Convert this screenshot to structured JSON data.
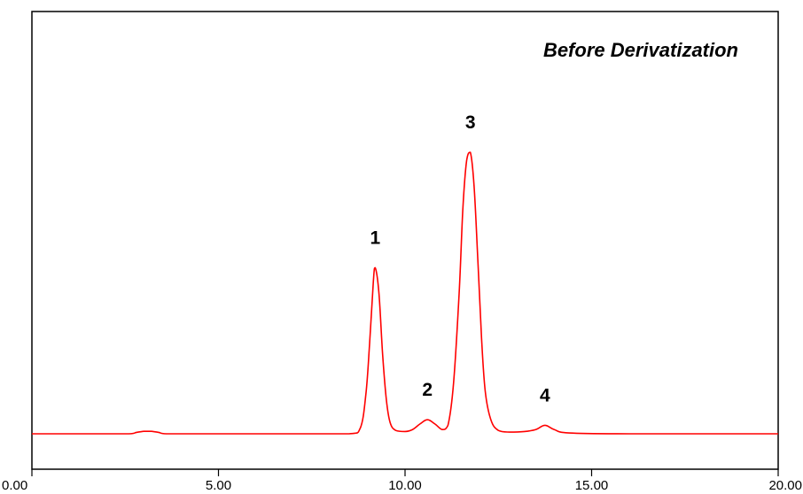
{
  "chart_data": {
    "type": "line",
    "title": "Before Derivatization",
    "xlabel": "",
    "ylabel": "",
    "xlim": [
      0,
      20
    ],
    "ylim": [
      0,
      100
    ],
    "grid": false,
    "x_ticks": [
      "0.00",
      "5.00",
      "10.00",
      "15.00",
      "20.00"
    ],
    "series": [
      {
        "color": "#ff0000",
        "x": [
          0.0,
          2.6,
          2.8,
          3.0,
          3.2,
          3.4,
          3.6,
          8.5,
          8.8,
          8.95,
          9.05,
          9.15,
          9.2,
          9.3,
          9.4,
          9.5,
          9.6,
          9.75,
          10.0,
          10.2,
          10.4,
          10.6,
          10.8,
          11.0,
          11.15,
          11.3,
          11.45,
          11.55,
          11.65,
          11.75,
          11.85,
          11.95,
          12.05,
          12.15,
          12.3,
          12.5,
          12.8,
          13.2,
          13.5,
          13.75,
          14.0,
          14.4,
          16.0,
          20.0
        ],
        "y": [
          0.0,
          0.0,
          0.5,
          0.9,
          0.9,
          0.5,
          0.0,
          0.0,
          2.0,
          14.0,
          32.0,
          54.0,
          59.0,
          50.0,
          28.0,
          12.0,
          4.0,
          1.2,
          0.8,
          1.5,
          3.5,
          5.0,
          3.5,
          1.5,
          3.0,
          18.0,
          50.0,
          80.0,
          97.0,
          100.0,
          88.0,
          62.0,
          34.0,
          15.0,
          5.0,
          1.2,
          0.6,
          0.8,
          1.5,
          3.0,
          1.5,
          0.3,
          0.0,
          0.0
        ]
      }
    ],
    "peak_labels": [
      {
        "text": "1",
        "x": 9.2,
        "y": 59.0
      },
      {
        "text": "2",
        "x": 10.6,
        "y": 5.0
      },
      {
        "text": "3",
        "x": 11.75,
        "y": 100.0
      },
      {
        "text": "4",
        "x": 13.75,
        "y": 3.0
      }
    ]
  }
}
